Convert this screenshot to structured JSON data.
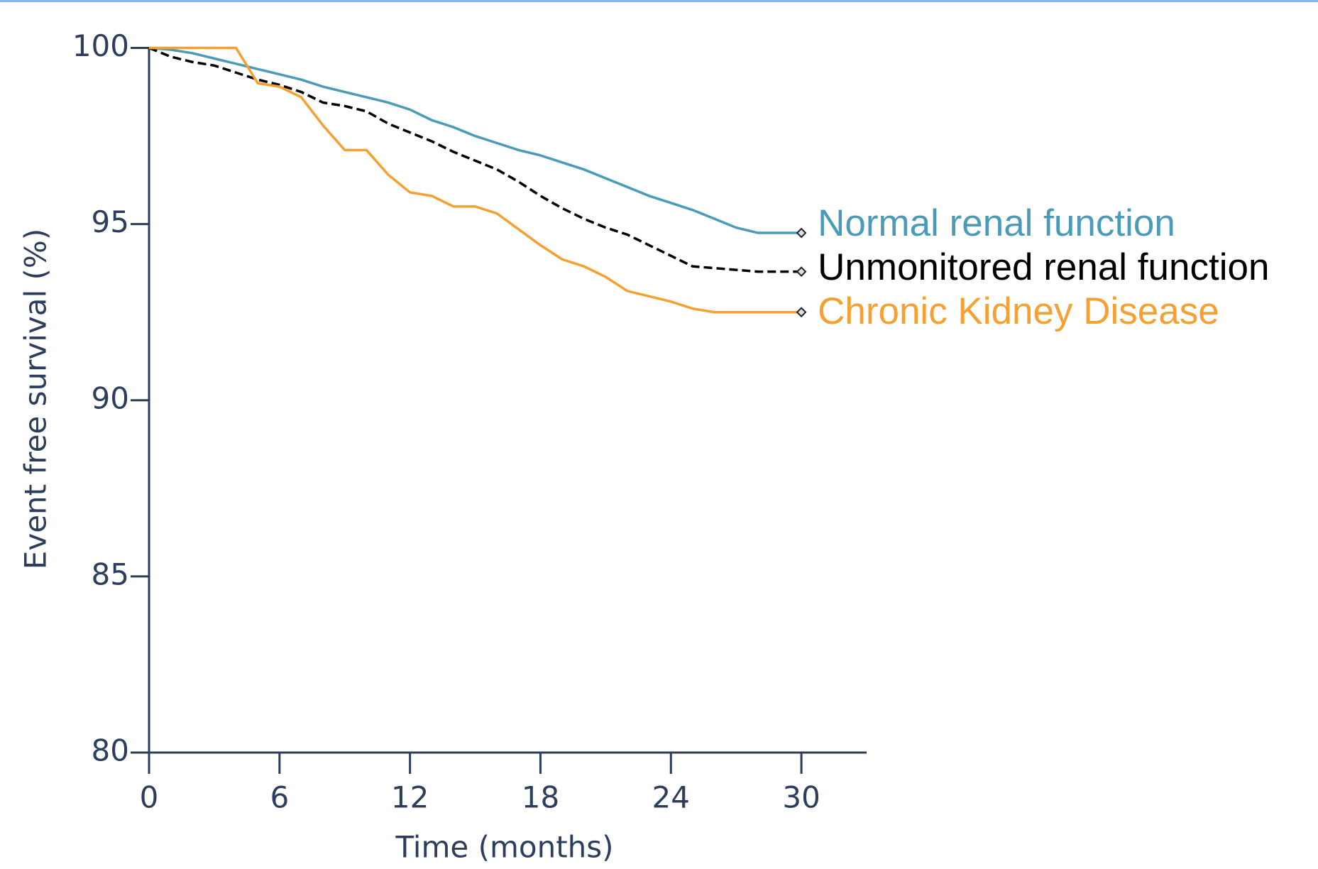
{
  "chart_data": {
    "type": "line",
    "xlabel": "Time (months)",
    "ylabel": "Event free survival (%)",
    "x": [
      0,
      1,
      2,
      3,
      4,
      5,
      6,
      7,
      8,
      9,
      10,
      11,
      12,
      13,
      14,
      15,
      16,
      17,
      18,
      19,
      20,
      21,
      22,
      23,
      24,
      25,
      26,
      27,
      28,
      29,
      30
    ],
    "xlim": [
      0,
      33
    ],
    "xticks": [
      0,
      6,
      12,
      18,
      24,
      30
    ],
    "ylim": [
      80,
      100
    ],
    "yticks": [
      80,
      85,
      90,
      95,
      100
    ],
    "grid": false,
    "series": [
      {
        "name": "Normal renal function",
        "color": "#4a9bb7",
        "dashed": false,
        "values": [
          100,
          99.95,
          99.85,
          99.7,
          99.55,
          99.4,
          99.25,
          99.1,
          98.9,
          98.75,
          98.6,
          98.45,
          98.25,
          97.95,
          97.75,
          97.5,
          97.3,
          97.1,
          96.95,
          96.75,
          96.55,
          96.3,
          96.05,
          95.8,
          95.6,
          95.4,
          95.15,
          94.9,
          94.75,
          94.75,
          94.75
        ]
      },
      {
        "name": "Unmonitored renal function",
        "color": "#000000",
        "dashed": true,
        "values": [
          100,
          99.75,
          99.6,
          99.5,
          99.3,
          99.1,
          98.95,
          98.75,
          98.45,
          98.35,
          98.2,
          97.85,
          97.6,
          97.35,
          97.05,
          96.8,
          96.55,
          96.2,
          95.8,
          95.45,
          95.15,
          94.9,
          94.7,
          94.4,
          94.1,
          93.8,
          93.75,
          93.7,
          93.65,
          93.65,
          93.65
        ]
      },
      {
        "name": "Chronic Kidney Disease",
        "color": "#f5a030",
        "dashed": false,
        "values": [
          100,
          100,
          100,
          100,
          100,
          99.0,
          98.9,
          98.6,
          97.8,
          97.1,
          97.1,
          96.4,
          95.9,
          95.8,
          95.5,
          95.5,
          95.3,
          94.85,
          94.4,
          94.0,
          93.8,
          93.5,
          93.1,
          92.95,
          92.8,
          92.6,
          92.5,
          92.5,
          92.5,
          92.5,
          92.5
        ]
      }
    ]
  }
}
